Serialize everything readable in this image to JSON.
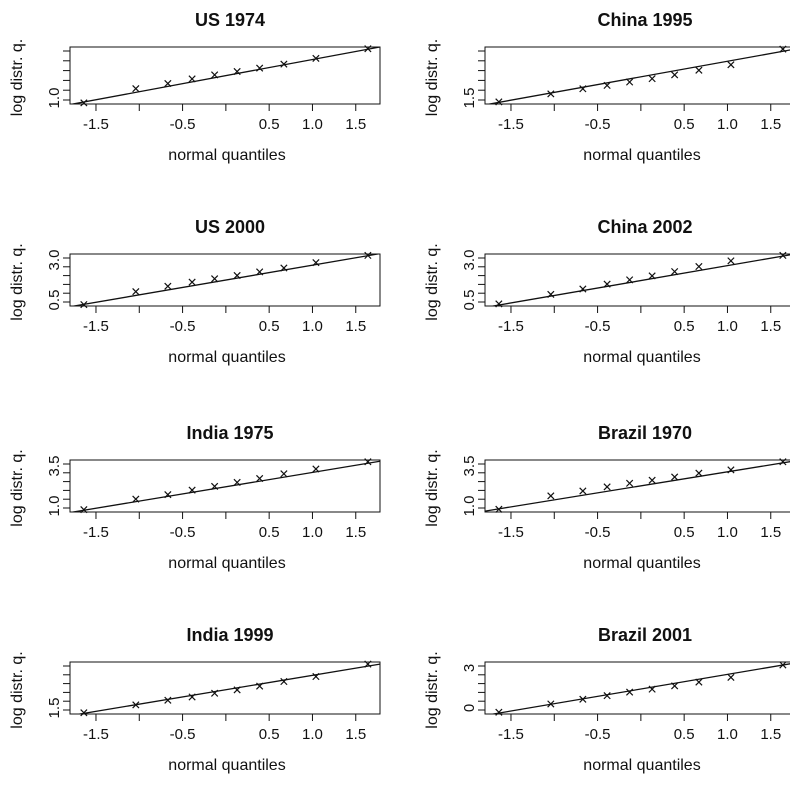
{
  "chart_data": [
    {
      "type": "scatter",
      "title": "US 1974",
      "xlabel": "normal quantiles",
      "ylabel": "log distr. q.",
      "xticks": [
        "-1.5",
        "-0.5",
        "0.5",
        "1.0",
        "1.5"
      ],
      "yticks": [
        "1.0"
      ],
      "xlim": [
        -1.8,
        1.78
      ],
      "ylim": [
        0.95,
        1.95
      ],
      "x": [
        -1.64,
        -1.04,
        -0.67,
        -0.39,
        -0.13,
        0.13,
        0.39,
        0.67,
        1.04,
        1.64
      ],
      "y": [
        0.97,
        1.22,
        1.31,
        1.39,
        1.46,
        1.52,
        1.58,
        1.65,
        1.75,
        1.92
      ],
      "fit": [
        [
          -1.8,
          0.94
        ],
        [
          1.78,
          1.95
        ]
      ]
    },
    {
      "type": "scatter",
      "title": "China 1995",
      "xlabel": "normal quantiles",
      "ylabel": "log distr. q.",
      "xticks": [
        "-1.5",
        "-0.5",
        "0.5",
        "1.0",
        "1.5"
      ],
      "yticks": [
        "1.5"
      ],
      "xlim": [
        -1.8,
        1.78
      ],
      "ylim": [
        1.3,
        2.65
      ],
      "x": [
        -1.64,
        -1.04,
        -0.67,
        -0.39,
        -0.13,
        0.13,
        0.39,
        0.67,
        1.04,
        1.64
      ],
      "y": [
        1.35,
        1.54,
        1.66,
        1.74,
        1.82,
        1.9,
        1.99,
        2.1,
        2.23,
        2.6
      ],
      "fit": [
        [
          -1.8,
          1.28
        ],
        [
          1.78,
          2.6
        ]
      ]
    },
    {
      "type": "scatter",
      "title": "US 2000",
      "xlabel": "normal quantiles",
      "ylabel": "log distr. q.",
      "xticks": [
        "-1.5",
        "-0.5",
        "0.5",
        "1.0",
        "1.5"
      ],
      "yticks": [
        "0.5",
        "3.0"
      ],
      "xlim": [
        -1.8,
        1.78
      ],
      "ylim": [
        0.3,
        3.2
      ],
      "x": [
        -1.64,
        -1.04,
        -0.67,
        -0.39,
        -0.13,
        0.13,
        0.39,
        0.67,
        1.04,
        1.64
      ],
      "y": [
        0.38,
        1.1,
        1.4,
        1.63,
        1.82,
        2.0,
        2.2,
        2.42,
        2.72,
        3.12
      ],
      "fit": [
        [
          -1.8,
          0.26
        ],
        [
          1.78,
          3.22
        ]
      ]
    },
    {
      "type": "scatter",
      "title": "China 2002",
      "xlabel": "normal quantiles",
      "ylabel": "log distr. q.",
      "xticks": [
        "-1.5",
        "-0.5",
        "0.5",
        "1.0",
        "1.5"
      ],
      "yticks": [
        "0.5",
        "3.0"
      ],
      "xlim": [
        -1.8,
        1.78
      ],
      "ylim": [
        0.3,
        3.2
      ],
      "x": [
        -1.64,
        -1.04,
        -0.67,
        -0.39,
        -0.13,
        0.13,
        0.39,
        0.67,
        1.04,
        1.64
      ],
      "y": [
        0.42,
        0.95,
        1.25,
        1.52,
        1.76,
        1.98,
        2.22,
        2.5,
        2.82,
        3.12
      ],
      "fit": [
        [
          -1.8,
          0.22
        ],
        [
          1.78,
          3.2
        ]
      ]
    },
    {
      "type": "scatter",
      "title": "India 1975",
      "xlabel": "normal quantiles",
      "ylabel": "log distr. q.",
      "xticks": [
        "-1.5",
        "-0.5",
        "0.5",
        "1.0",
        "1.5"
      ],
      "yticks": [
        "1.0",
        "3.5"
      ],
      "xlim": [
        -1.8,
        1.78
      ],
      "ylim": [
        0.75,
        3.65
      ],
      "x": [
        -1.64,
        -1.04,
        -0.67,
        -0.39,
        -0.13,
        0.13,
        0.39,
        0.67,
        1.04,
        1.64
      ],
      "y": [
        0.88,
        1.47,
        1.72,
        1.97,
        2.18,
        2.4,
        2.62,
        2.88,
        3.15,
        3.55
      ],
      "fit": [
        [
          -1.8,
          0.72
        ],
        [
          1.78,
          3.58
        ]
      ]
    },
    {
      "type": "scatter",
      "title": "Brazil 1970",
      "xlabel": "normal quantiles",
      "ylabel": "log distr. q.",
      "xticks": [
        "-1.5",
        "-0.5",
        "0.5",
        "1.0",
        "1.5"
      ],
      "yticks": [
        "1.0",
        "3.5"
      ],
      "xlim": [
        -1.8,
        1.78
      ],
      "ylim": [
        0.75,
        3.65
      ],
      "x": [
        -1.64,
        -1.04,
        -0.67,
        -0.39,
        -0.13,
        0.13,
        0.39,
        0.67,
        1.04,
        1.64
      ],
      "y": [
        0.9,
        1.65,
        1.92,
        2.15,
        2.35,
        2.52,
        2.7,
        2.92,
        3.1,
        3.55
      ],
      "fit": [
        [
          -1.8,
          0.8
        ],
        [
          1.78,
          3.6
        ]
      ]
    },
    {
      "type": "scatter",
      "title": "India 1999",
      "xlabel": "normal quantiles",
      "ylabel": "log distr. q.",
      "xticks": [
        "-1.5",
        "-0.5",
        "0.5",
        "1.0",
        "1.5"
      ],
      "yticks": [
        "1.5"
      ],
      "xlim": [
        -1.8,
        1.78
      ],
      "ylim": [
        1.3,
        2.55
      ],
      "x": [
        -1.64,
        -1.04,
        -0.67,
        -0.39,
        -0.13,
        0.13,
        0.39,
        0.67,
        1.04,
        1.64
      ],
      "y": [
        1.33,
        1.52,
        1.63,
        1.71,
        1.8,
        1.88,
        1.97,
        2.08,
        2.2,
        2.5
      ],
      "fit": [
        [
          -1.8,
          1.26
        ],
        [
          1.78,
          2.5
        ]
      ]
    },
    {
      "type": "scatter",
      "title": "Brazil 2001",
      "xlabel": "normal quantiles",
      "ylabel": "log distr. q.",
      "xticks": [
        "-1.5",
        "-0.5",
        "0.5",
        "1.0",
        "1.5"
      ],
      "yticks": [
        "0",
        "3"
      ],
      "xlim": [
        -1.8,
        1.78
      ],
      "ylim": [
        -0.3,
        4.1
      ],
      "x": [
        -1.64,
        -1.04,
        -0.67,
        -0.39,
        -0.13,
        0.13,
        0.39,
        0.67,
        1.04,
        1.64
      ],
      "y": [
        -0.15,
        0.55,
        0.95,
        1.25,
        1.55,
        1.8,
        2.08,
        2.4,
        2.8,
        3.85
      ],
      "fit": [
        [
          -1.8,
          -0.42
        ],
        [
          1.78,
          4.02
        ]
      ]
    }
  ]
}
